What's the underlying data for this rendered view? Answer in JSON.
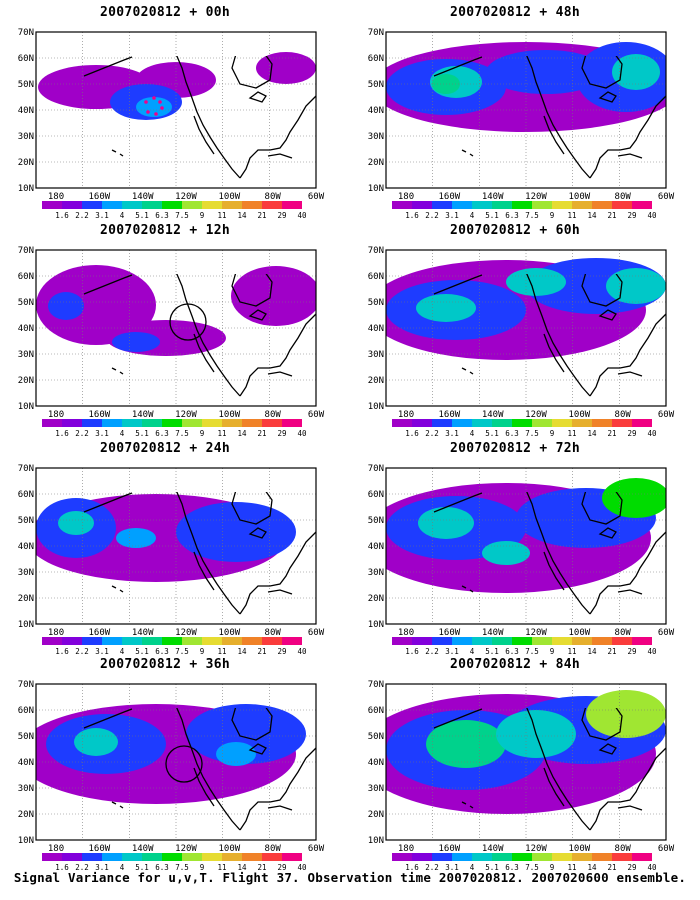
{
  "panels": [
    {
      "title": "2007020812 + 00h"
    },
    {
      "title": "2007020812 + 48h"
    },
    {
      "title": "2007020812 + 12h"
    },
    {
      "title": "2007020812 + 60h"
    },
    {
      "title": "2007020812 + 24h"
    },
    {
      "title": "2007020812 + 72h"
    },
    {
      "title": "2007020812 + 36h"
    },
    {
      "title": "2007020812 + 84h"
    }
  ],
  "lat_labels": [
    "70N",
    "60N",
    "50N",
    "40N",
    "30N",
    "20N",
    "10N"
  ],
  "lon_labels": [
    "180",
    "160W",
    "140W",
    "120W",
    "100W",
    "80W",
    "60W"
  ],
  "colorbar": {
    "labels": [
      "1.6",
      "2.2",
      "3.1",
      "4",
      "5.1",
      "6.3",
      "7.5",
      "9",
      "11",
      "14",
      "21",
      "29",
      "40"
    ],
    "colors": [
      "#a000c8",
      "#8200dc",
      "#1e3cff",
      "#00a0ff",
      "#00c8c8",
      "#00d28c",
      "#00dc00",
      "#a0e632",
      "#e6dc32",
      "#e6af2d",
      "#f08228",
      "#fa3c3c",
      "#f00082"
    ]
  },
  "footer": "Signal Variance for u,v,T. Flight 37. Observation time 2007020812. 2007020600 ensemble."
}
